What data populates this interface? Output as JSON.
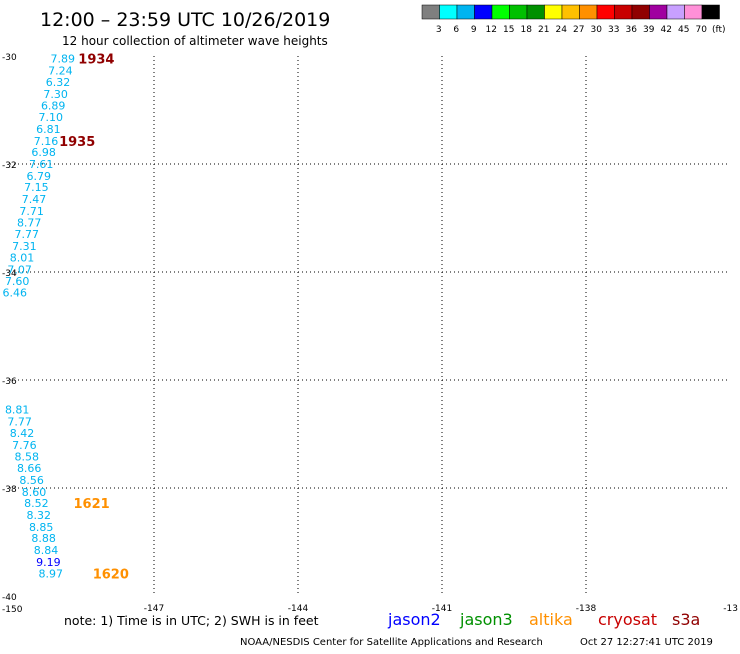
{
  "header": {
    "title": "12:00 – 23:59 UTC 10/26/2019",
    "subtitle": "12 hour collection of altimeter wave heights"
  },
  "colorbar": {
    "colors": [
      "#7f7f7f",
      "#00ffff",
      "#00b4f0",
      "#0000ff",
      "#00ff00",
      "#00c000",
      "#009000",
      "#ffff00",
      "#ffc000",
      "#ff9000",
      "#ff0000",
      "#c80000",
      "#900000",
      "#a000a0",
      "#c8a0ff",
      "#ff90d8",
      "#000000"
    ],
    "labels": [
      "3",
      "6",
      "9",
      "12",
      "15",
      "18",
      "21",
      "24",
      "27",
      "30",
      "33",
      "36",
      "39",
      "42",
      "45",
      "70",
      "(ft)"
    ]
  },
  "chart_data": {
    "type": "scatter",
    "xlim": [
      -150,
      -135
    ],
    "ylim": [
      -40,
      -30
    ],
    "x_ticks": [
      "-150",
      "-147",
      "-144",
      "-141",
      "-138",
      "-13"
    ],
    "y_ticks": [
      "-30",
      "-32",
      "-34",
      "-36",
      "-38",
      "-40"
    ],
    "grid": true,
    "points": [
      {
        "lon": -148.9,
        "lat": -30.05,
        "v": "7.89"
      },
      {
        "lon": -148.95,
        "lat": -30.27,
        "v": "7.24"
      },
      {
        "lon": -149.0,
        "lat": -30.48,
        "v": "6.32"
      },
      {
        "lon": -149.05,
        "lat": -30.7,
        "v": "7.30"
      },
      {
        "lon": -149.1,
        "lat": -30.92,
        "v": "6.89"
      },
      {
        "lon": -149.15,
        "lat": -31.13,
        "v": "7.10"
      },
      {
        "lon": -149.2,
        "lat": -31.35,
        "v": "6.81"
      },
      {
        "lon": -149.25,
        "lat": -31.57,
        "v": "7.16"
      },
      {
        "lon": -149.3,
        "lat": -31.78,
        "v": "6.98"
      },
      {
        "lon": -149.35,
        "lat": -32.0,
        "v": "7.61"
      },
      {
        "lon": -149.4,
        "lat": -32.22,
        "v": "6.79"
      },
      {
        "lon": -149.45,
        "lat": -32.43,
        "v": "7.15"
      },
      {
        "lon": -149.5,
        "lat": -32.65,
        "v": "7.47"
      },
      {
        "lon": -149.55,
        "lat": -32.87,
        "v": "7.71"
      },
      {
        "lon": -149.6,
        "lat": -33.08,
        "v": "8.77"
      },
      {
        "lon": -149.65,
        "lat": -33.3,
        "v": "7.77"
      },
      {
        "lon": -149.7,
        "lat": -33.52,
        "v": "7.31"
      },
      {
        "lon": -149.75,
        "lat": -33.73,
        "v": "8.01"
      },
      {
        "lon": -149.8,
        "lat": -33.95,
        "v": "7.07"
      },
      {
        "lon": -149.85,
        "lat": -34.17,
        "v": "7.60"
      },
      {
        "lon": -149.9,
        "lat": -34.38,
        "v": "6.46"
      },
      {
        "lon": -149.85,
        "lat": -36.55,
        "v": "8.81"
      },
      {
        "lon": -149.8,
        "lat": -36.77,
        "v": "7.77"
      },
      {
        "lon": -149.75,
        "lat": -36.98,
        "v": "8.42"
      },
      {
        "lon": -149.7,
        "lat": -37.2,
        "v": "7.76"
      },
      {
        "lon": -149.65,
        "lat": -37.42,
        "v": "8.58"
      },
      {
        "lon": -149.6,
        "lat": -37.63,
        "v": "8.66"
      },
      {
        "lon": -149.55,
        "lat": -37.85,
        "v": "8.56"
      },
      {
        "lon": -149.5,
        "lat": -38.07,
        "v": "8.60"
      },
      {
        "lon": -149.45,
        "lat": -38.28,
        "v": "8.52"
      },
      {
        "lon": -149.4,
        "lat": -38.5,
        "v": "8.32"
      },
      {
        "lon": -149.35,
        "lat": -38.72,
        "v": "8.85"
      },
      {
        "lon": -149.3,
        "lat": -38.93,
        "v": "8.88"
      },
      {
        "lon": -149.25,
        "lat": -39.15,
        "v": "8.84"
      },
      {
        "lon": -149.2,
        "lat": -39.37,
        "v": "9.19"
      },
      {
        "lon": -149.15,
        "lat": -39.58,
        "v": "8.97"
      }
    ],
    "time_labels": [
      {
        "lon": -148.2,
        "lat": -30.05,
        "text": "1934",
        "color": "#900000"
      },
      {
        "lon": -148.6,
        "lat": -31.57,
        "text": "1935",
        "color": "#900000"
      },
      {
        "lon": -148.3,
        "lat": -38.28,
        "text": "1621",
        "color": "#ff9000"
      },
      {
        "lon": -147.9,
        "lat": -39.58,
        "text": "1620",
        "color": "#ff9000"
      }
    ]
  },
  "footer": {
    "note": "note: 1) Time is in UTC; 2) SWH is in feet",
    "credit": "NOAA/NESDIS Center for Satellite Applications and Research",
    "timestamp": "Oct 27 12:27:41 UTC 2019",
    "missions": [
      {
        "name": "jason2",
        "color": "#0000ff"
      },
      {
        "name": "jason3",
        "color": "#009000"
      },
      {
        "name": "altika",
        "color": "#ff9000"
      },
      {
        "name": "cryosat",
        "color": "#c80000"
      },
      {
        "name": "s3a",
        "color": "#900000"
      }
    ]
  }
}
